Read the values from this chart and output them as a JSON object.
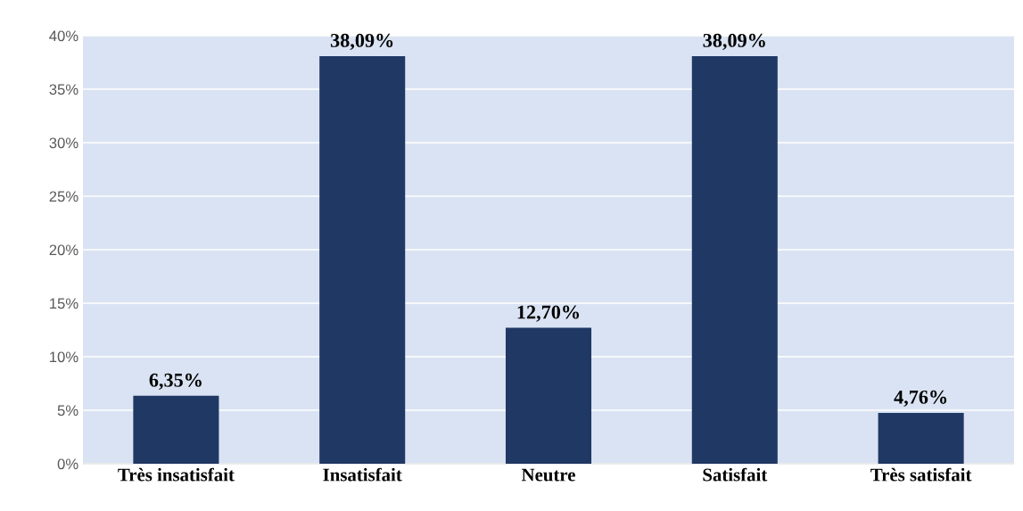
{
  "chart_data": {
    "type": "bar",
    "categories": [
      "Très insatisfait",
      "Insatisfait",
      "Neutre",
      "Satisfait",
      "Très satisfait"
    ],
    "values": [
      6.35,
      38.09,
      12.7,
      38.09,
      4.76
    ],
    "value_labels": [
      "6,35%",
      "38,09%",
      "12,70%",
      "38,09%",
      "4,76%"
    ],
    "color": "#1f3864",
    "ylim": [
      0,
      40
    ],
    "yticks": [
      {
        "value": 0,
        "label": "0%"
      },
      {
        "value": 5,
        "label": "5%"
      },
      {
        "value": 10,
        "label": "10%"
      },
      {
        "value": 15,
        "label": "15%"
      },
      {
        "value": 20,
        "label": "20%"
      },
      {
        "value": 25,
        "label": "25%"
      },
      {
        "value": 30,
        "label": "30%"
      },
      {
        "value": 35,
        "label": "35%"
      },
      {
        "value": 40,
        "label": "40%"
      }
    ],
    "grid": "y",
    "legend": false
  }
}
